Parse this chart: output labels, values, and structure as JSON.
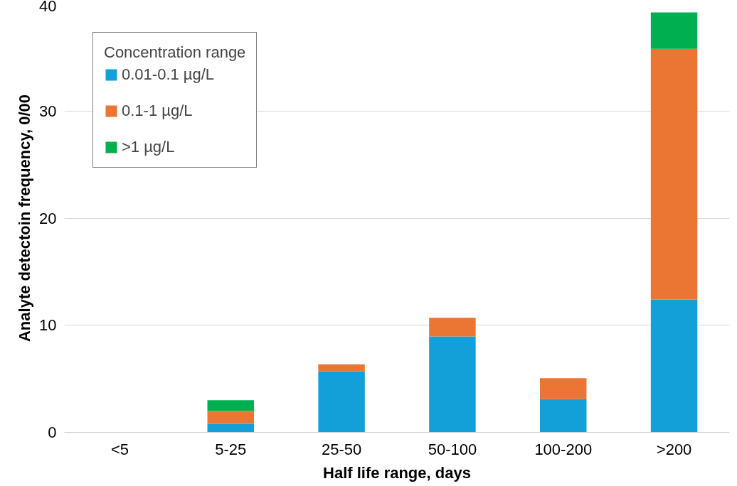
{
  "chart_data": {
    "type": "bar",
    "stacked": true,
    "xlabel": "Half life range, days",
    "ylabel": "Analyte detectoin frequency, 0/00",
    "legend_title": "Concentration range",
    "categories": [
      "<5",
      "5-25",
      "25-50",
      "50-100",
      "100-200",
      ">200"
    ],
    "series": [
      {
        "name": "0.01-0.1 µg/L",
        "color": "#13a0d8",
        "values": [
          0,
          0.8,
          5.7,
          8.95,
          3.1,
          12.4
        ]
      },
      {
        "name": "0.1-1 µg/L",
        "color": "#eb7533",
        "values": [
          0,
          1.2,
          0.65,
          1.75,
          1.95,
          23.4
        ]
      },
      {
        "name": ">1 µg/L",
        "color": "#00b050",
        "values": [
          0,
          1.0,
          0,
          0,
          0,
          3.4
        ]
      }
    ],
    "ylim": [
      0,
      40
    ],
    "yticks": [
      0,
      10,
      20,
      30,
      40
    ],
    "grid": "y",
    "legend": "top left"
  }
}
